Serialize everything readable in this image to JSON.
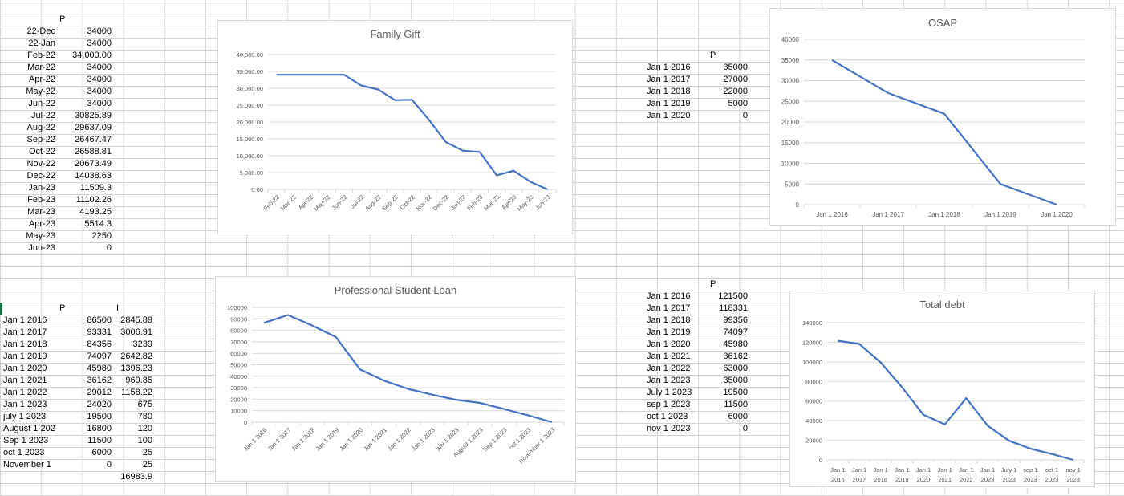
{
  "sheet": {
    "family_gift_table": {
      "header": "P",
      "rows": [
        {
          "date": "22-Dec",
          "p": "34000"
        },
        {
          "date": "22-Jan",
          "p": "34000"
        },
        {
          "date": "Feb-22",
          "p": "34,000.00"
        },
        {
          "date": "Mar-22",
          "p": "34000"
        },
        {
          "date": "Apr-22",
          "p": "34000"
        },
        {
          "date": "May-22",
          "p": "34000"
        },
        {
          "date": "Jun-22",
          "p": "34000"
        },
        {
          "date": "Jul-22",
          "p": "30825.89"
        },
        {
          "date": "Aug-22",
          "p": "29637.09"
        },
        {
          "date": "Sep-22",
          "p": "26467.47"
        },
        {
          "date": "Oct-22",
          "p": "26588.81"
        },
        {
          "date": "Nov-22",
          "p": "20673.49"
        },
        {
          "date": "Dec-22",
          "p": "14038.63"
        },
        {
          "date": "Jan-23",
          "p": "11509.3"
        },
        {
          "date": "Feb-23",
          "p": "11102.26"
        },
        {
          "date": "Mar-23",
          "p": "4193.25"
        },
        {
          "date": "Apr-23",
          "p": "5514.3"
        },
        {
          "date": "May-23",
          "p": "2250"
        },
        {
          "date": "Jun-23",
          "p": "0"
        }
      ]
    },
    "professional_loan_table": {
      "header_p": "P",
      "header_i": "I",
      "rows": [
        {
          "date": "Jan 1 2016",
          "p": "86500",
          "i": "2845.89"
        },
        {
          "date": "Jan 1 2017",
          "p": "93331",
          "i": "3006.91"
        },
        {
          "date": "Jan 1 2018",
          "p": "84356",
          "i": "3239"
        },
        {
          "date": "Jan 1 2019",
          "p": "74097",
          "i": "2642.82"
        },
        {
          "date": "Jan 1 2020",
          "p": "45980",
          "i": "1396.23"
        },
        {
          "date": "Jan 1 2021",
          "p": "36162",
          "i": "969.85"
        },
        {
          "date": "Jan 1 2022",
          "p": "29012",
          "i": "1158.22"
        },
        {
          "date": "Jan 1 2023",
          "p": "24020",
          "i": "675"
        },
        {
          "date": "july 1 2023",
          "p": "19500",
          "i": "780"
        },
        {
          "date": "August 1 202",
          "p": "16800",
          "i": "120"
        },
        {
          "date": "Sep 1 2023",
          "p": "11500",
          "i": "100"
        },
        {
          "date": "oct 1 2023",
          "p": "6000",
          "i": "25"
        },
        {
          "date": "November 1",
          "p": "0",
          "i": "25"
        }
      ],
      "total_i": "16983.9"
    },
    "osap_table": {
      "header": "P",
      "rows": [
        {
          "date": "Jan 1 2016",
          "p": "35000"
        },
        {
          "date": "Jan 1 2017",
          "p": "27000"
        },
        {
          "date": "Jan 1 2018",
          "p": "22000"
        },
        {
          "date": "Jan 1 2019",
          "p": "5000"
        },
        {
          "date": "Jan  1 2020",
          "p": "0"
        }
      ]
    },
    "total_debt_table": {
      "header": "P",
      "rows": [
        {
          "date": "Jan 1 2016",
          "p": "121500"
        },
        {
          "date": "Jan 1 2017",
          "p": "118331"
        },
        {
          "date": "Jan 1 2018",
          "p": "99356"
        },
        {
          "date": "Jan 1 2019",
          "p": "74097"
        },
        {
          "date": "Jan 1 2020",
          "p": "45980"
        },
        {
          "date": "Jan 1 2021",
          "p": "36162"
        },
        {
          "date": "Jan 1 2022",
          "p": "63000"
        },
        {
          "date": "Jan 1 2023",
          "p": "35000"
        },
        {
          "date": "July 1 2023",
          "p": "19500"
        },
        {
          "date": "sep 1 2023",
          "p": "11500"
        },
        {
          "date": "oct 1 2023",
          "p": "6000"
        },
        {
          "date": "nov 1 2023",
          "p": "0"
        }
      ]
    }
  },
  "line_color": "#4472c4",
  "chart_data": [
    {
      "type": "line",
      "title": "Family Gift",
      "xlabel": "",
      "ylabel": "",
      "categories": [
        "Feb-22",
        "Mar-22",
        "Apr-22",
        "May-22",
        "Jun-22",
        "Jul-22",
        "Aug-22",
        "Sep-22",
        "Oct-22",
        "Nov-22",
        "Dec-22",
        "Jan-23",
        "Feb-23",
        "Mar-23",
        "Apr-23",
        "May-23",
        "Jun-23"
      ],
      "values": [
        34000,
        34000,
        34000,
        34000,
        34000,
        30825.89,
        29637.09,
        26467.47,
        26588.81,
        20673.49,
        14038.63,
        11509.3,
        11102.26,
        4193.25,
        5514.3,
        2250,
        0
      ],
      "ylim": [
        0,
        40000
      ],
      "yticks": [
        "0.00",
        "5,000.00",
        "10,000.00",
        "15,000.00",
        "20,000.00",
        "25,000.00",
        "30,000.00",
        "35,000.00",
        "40,000.00"
      ],
      "grid": true,
      "legend": "none"
    },
    {
      "type": "line",
      "title": "OSAP",
      "xlabel": "",
      "ylabel": "",
      "categories": [
        "Jan 1 2016",
        "Jan 1 2017",
        "Jan 1 2018",
        "Jan 1 2019",
        "Jan  1 2020"
      ],
      "values": [
        35000,
        27000,
        22000,
        5000,
        0
      ],
      "ylim": [
        0,
        40000
      ],
      "yticks": [
        "0",
        "5000",
        "10000",
        "15000",
        "20000",
        "25000",
        "30000",
        "35000",
        "40000"
      ],
      "grid": true,
      "legend": "none"
    },
    {
      "type": "line",
      "title": "Professional Student Loan",
      "xlabel": "",
      "ylabel": "",
      "categories": [
        "Jan 1 2016",
        "Jan 1 2017",
        "Jan 1 2018",
        "Jan 1 2019",
        "Jan 1 2020",
        "Jan 1 2021",
        "Jan 1 2022",
        "Jan 1 2023",
        "july 1 2023",
        "August 1 2023",
        "Sep 1 2023",
        "oct 1 2023",
        "November 1 2023"
      ],
      "values": [
        86500,
        93331,
        84356,
        74097,
        45980,
        36162,
        29012,
        24020,
        19500,
        16800,
        11500,
        6000,
        0
      ],
      "ylim": [
        0,
        100000
      ],
      "yticks": [
        "0",
        "10000",
        "20000",
        "30000",
        "40000",
        "50000",
        "60000",
        "70000",
        "80000",
        "90000",
        "100000"
      ],
      "grid": true,
      "legend": "none"
    },
    {
      "type": "line",
      "title": "Total debt",
      "xlabel": "",
      "ylabel": "",
      "categories": [
        "Jan 1 2016",
        "Jan 1 2017",
        "Jan 1 2018",
        "Jan 1 2019",
        "Jan 1 2020",
        "Jan 1 2021",
        "Jan 1 2022",
        "Jan 1 2023",
        "July 1 2023",
        "sep 1 2023",
        "oct 1 2023",
        "nov 1 2023"
      ],
      "values": [
        121500,
        118331,
        99356,
        74097,
        45980,
        36162,
        63000,
        35000,
        19500,
        11500,
        6000,
        0
      ],
      "ylim": [
        0,
        140000
      ],
      "yticks": [
        "0",
        "20000",
        "40000",
        "60000",
        "80000",
        "100000",
        "120000",
        "140000"
      ],
      "grid": true,
      "legend": "none"
    }
  ]
}
